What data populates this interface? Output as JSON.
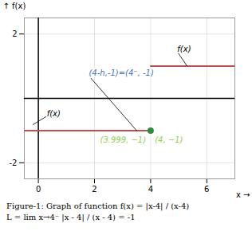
{
  "chart_data": {
    "type": "line",
    "x_label": "x",
    "y_label": "f(x)",
    "xlim": [
      -0.5,
      7
    ],
    "ylim": [
      -2.5,
      2.5
    ],
    "xticks": [
      0,
      2,
      4,
      6
    ],
    "yticks": [
      -2,
      2
    ],
    "grid": true,
    "series": [
      {
        "color": "#c0504d",
        "x": [
          -0.5,
          4
        ],
        "values": [
          -1,
          -1
        ]
      },
      {
        "color": "#c0504d",
        "x": [
          4,
          7
        ],
        "values": [
          1,
          1
        ]
      },
      {
        "type": "scatter",
        "marker": "circle",
        "color": "#2e8b3a",
        "x": [
          4
        ],
        "values": [
          -1
        ]
      }
    ],
    "annotations": [
      {
        "text": "(4-h,-1)=(4⁻, -1)",
        "x": 1.8,
        "y": 0.7,
        "target": [
          3.5,
          -1
        ],
        "color": "#4472c4"
      },
      {
        "text": "f(x)",
        "x": 0.3,
        "y": -0.55,
        "target": [
          -0.2,
          -0.82
        ],
        "color": "#000000"
      },
      {
        "text": "f(x)",
        "x": 4.95,
        "y": 1.45,
        "target": [
          5.3,
          1.0
        ],
        "color": "#000000"
      },
      {
        "text": "(3.999, −1)",
        "x": 2.2,
        "y": -1.38,
        "color": "#92d050"
      },
      {
        "text": "(4, −1)",
        "x": 4.15,
        "y": -1.38,
        "color": "#92d050"
      }
    ],
    "caption": [
      "Figure-1: Graph of function f(x) = |x-4| / (x-4)",
      "L = lim x→4⁻ |x - 4| / (x - 4) = -1"
    ]
  }
}
